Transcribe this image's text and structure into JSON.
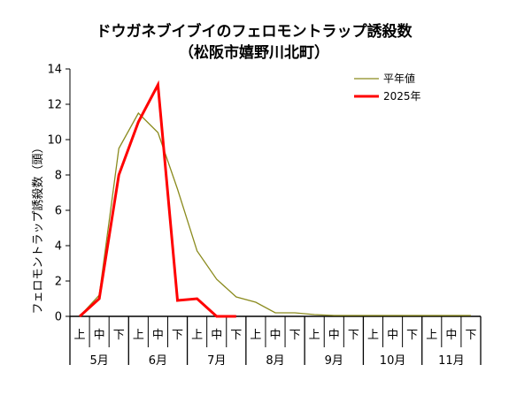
{
  "chart_data": {
    "type": "line",
    "title": "ドウガネブイブイのフェロモントラップ誘殺数",
    "subtitle": "（松阪市嬉野川北町）",
    "ylabel": "フェロモントラップ誘殺数（頭）",
    "xlabel": "",
    "ylim": [
      0,
      14
    ],
    "yticks": [
      0,
      2,
      4,
      6,
      8,
      10,
      12,
      14
    ],
    "grid": false,
    "legend_position": "top-right",
    "categories": [
      "上",
      "中",
      "下",
      "上",
      "中",
      "下",
      "上",
      "中",
      "下",
      "上",
      "中",
      "下",
      "上",
      "中",
      "下",
      "上",
      "中",
      "下",
      "上",
      "中",
      "下"
    ],
    "months": [
      "5月",
      "6月",
      "7月",
      "8月",
      "9月",
      "10月",
      "11月"
    ],
    "series": [
      {
        "name": "平年値",
        "color": "#8b8b1e",
        "values": [
          0,
          1.2,
          9.5,
          11.5,
          10.4,
          7.2,
          3.7,
          2.1,
          1.1,
          0.8,
          0.2,
          0.2,
          0.1,
          0.05,
          0.05,
          0.05,
          0.05,
          0.05,
          0.05,
          0.05,
          0.05
        ]
      },
      {
        "name": "2025年",
        "color": "#ff0000",
        "values": [
          0,
          1,
          8,
          11,
          13.1,
          0.9,
          1,
          0,
          0,
          null,
          null,
          null,
          null,
          null,
          null,
          null,
          null,
          null,
          null,
          null,
          null
        ]
      }
    ]
  }
}
